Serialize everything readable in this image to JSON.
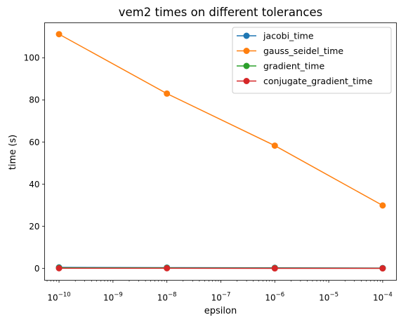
{
  "chart_data": {
    "type": "line",
    "title": "vem2 times on different tolerances",
    "xlabel": "epsilon",
    "ylabel": "time (s)",
    "xscale": "log",
    "xlim": [
      5.4e-11,
      0.00018
    ],
    "ylim": [
      -5.6,
      116.6
    ],
    "x": [
      1e-10,
      1e-08,
      1e-06,
      0.0001
    ],
    "x_ticks": [
      {
        "value": 1e-10,
        "base": "10",
        "exp": "−10"
      },
      {
        "value": 1e-09,
        "base": "10",
        "exp": "−9"
      },
      {
        "value": 1e-08,
        "base": "10",
        "exp": "−8"
      },
      {
        "value": 1e-07,
        "base": "10",
        "exp": "−7"
      },
      {
        "value": 1e-06,
        "base": "10",
        "exp": "−6"
      },
      {
        "value": 1e-05,
        "base": "10",
        "exp": "−5"
      },
      {
        "value": 0.0001,
        "base": "10",
        "exp": "−4"
      }
    ],
    "y_ticks": [
      {
        "value": 0,
        "label": "0"
      },
      {
        "value": 20,
        "label": "20"
      },
      {
        "value": 40,
        "label": "40"
      },
      {
        "value": 60,
        "label": "60"
      },
      {
        "value": 80,
        "label": "80"
      },
      {
        "value": 100,
        "label": "100"
      }
    ],
    "grid": false,
    "legend_position": "top-right",
    "series": [
      {
        "name": "jacobi_time",
        "color": "#1f77b4",
        "values": [
          0.5,
          0.4,
          0.3,
          0.2
        ]
      },
      {
        "name": "gauss_seidel_time",
        "color": "#ff7f0e",
        "values": [
          111.2,
          83.0,
          58.3,
          29.9
        ]
      },
      {
        "name": "gradient_time",
        "color": "#2ca02c",
        "values": [
          0.3,
          0.25,
          0.2,
          0.1
        ]
      },
      {
        "name": "conjugate_gradient_time",
        "color": "#d62728",
        "values": [
          0.1,
          0.1,
          0.05,
          0.05
        ]
      }
    ]
  }
}
